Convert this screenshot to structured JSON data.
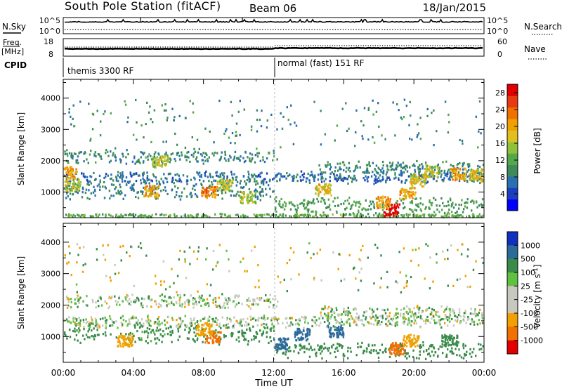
{
  "header": {
    "title": "South Pole Station (fitACF)",
    "beam": "Beam 06",
    "date": "18/Jan/2015"
  },
  "strip_labels": {
    "nsky": "N.Sky",
    "nsearch": "N.Search",
    "freq_line1": "Freq.",
    "freq_line2": "[MHz]",
    "nave": "Nave",
    "cpid": "CPID"
  },
  "strip_ticks": {
    "noise_left_top": "10^5",
    "noise_left_bottom": "10^0",
    "noise_right_top": "10^5",
    "noise_right_bottom": "10^0",
    "freq_top": "18",
    "freq_bottom": "8",
    "nave_top": "60",
    "nave_bottom": "0"
  },
  "cpid": {
    "modes": [
      {
        "label": "themis 3300 RF",
        "start_hour": 0
      },
      {
        "label": "normal (fast) 151 RF",
        "start_hour": 12
      }
    ]
  },
  "chart_data": [
    {
      "type": "heatmap",
      "panel": "power",
      "ylabel": "Slant Range [km]",
      "xlabel": "Time UT",
      "x_ticks": [
        "00:00",
        "04:00",
        "08:00",
        "12:00",
        "16:00",
        "20:00",
        "00:00"
      ],
      "xlim_hours": [
        0,
        24
      ],
      "y_ticks": [
        "1000",
        "2000",
        "3000",
        "4000"
      ],
      "ylim_km": [
        180,
        4600
      ],
      "colorbar": {
        "label": "Power [dB]",
        "ticks": [
          "4",
          "8",
          "12",
          "16",
          "20",
          "24",
          "28"
        ],
        "range": [
          0,
          30
        ],
        "colors": [
          "#0000ff",
          "#1c3fbf",
          "#2a6fb0",
          "#3e8a5a",
          "#55a84a",
          "#8fc23a",
          "#e0c020",
          "#f0a000",
          "#f07000",
          "#e83a10",
          "#e00000"
        ]
      },
      "bands": [
        {
          "from_hour": 0.0,
          "to_hour": 12.2,
          "center_km": 2150,
          "width_km": 420,
          "value": 9
        },
        {
          "from_hour": 14.5,
          "to_hour": 24.0,
          "center_km": 1800,
          "width_km": 380,
          "value": 9
        },
        {
          "from_hour": 0.0,
          "to_hour": 24.0,
          "center_km": 1500,
          "width_km": 350,
          "value": 7
        },
        {
          "from_hour": 0.0,
          "to_hour": 12.0,
          "center_km": 1100,
          "width_km": 600,
          "value": 8
        },
        {
          "from_hour": 12.0,
          "to_hour": 24.0,
          "center_km": 600,
          "width_km": 500,
          "value": 11
        },
        {
          "from_hour": 0.0,
          "to_hour": 24.0,
          "center_km": 260,
          "width_km": 150,
          "value": 12
        }
      ],
      "hotspots": [
        {
          "hour": 0.3,
          "km": 1650,
          "value": 20
        },
        {
          "hour": 0.5,
          "km": 1250,
          "value": 16
        },
        {
          "hour": 5.0,
          "km": 1050,
          "value": 20
        },
        {
          "hour": 5.5,
          "km": 2000,
          "value": 16
        },
        {
          "hour": 8.3,
          "km": 1000,
          "value": 22
        },
        {
          "hour": 9.2,
          "km": 1250,
          "value": 16
        },
        {
          "hour": 10.5,
          "km": 850,
          "value": 16
        },
        {
          "hour": 14.8,
          "km": 1100,
          "value": 18
        },
        {
          "hour": 18.7,
          "km": 450,
          "value": 30
        },
        {
          "hour": 18.2,
          "km": 700,
          "value": 20
        },
        {
          "hour": 19.6,
          "km": 1000,
          "value": 20
        },
        {
          "hour": 20.2,
          "km": 1400,
          "value": 18
        },
        {
          "hour": 21.0,
          "km": 1700,
          "value": 16
        },
        {
          "hour": 22.5,
          "km": 1600,
          "value": 20
        },
        {
          "hour": 23.6,
          "km": 1550,
          "value": 18
        }
      ]
    },
    {
      "type": "heatmap",
      "panel": "velocity",
      "ylabel": "Slant Range [km]",
      "xlabel": "Time UT",
      "x_ticks": [
        "00:00",
        "04:00",
        "08:00",
        "12:00",
        "16:00",
        "20:00",
        "00:00"
      ],
      "xlim_hours": [
        0,
        24
      ],
      "y_ticks": [
        "1000",
        "2000",
        "3000",
        "4000"
      ],
      "ylim_km": [
        180,
        4600
      ],
      "colorbar": {
        "label": "Velocity [m s^-1]",
        "ticks": [
          "1000",
          "500",
          "100",
          "25",
          "-25",
          "-100",
          "-500",
          "-1000"
        ],
        "colors": [
          "#1030c0",
          "#2c6a9a",
          "#3a8a4a",
          "#60c040",
          "#c8c8c0",
          "#c8c8c0",
          "#f0a000",
          "#f07000",
          "#e00000"
        ]
      },
      "bands": [
        {
          "from_hour": 0.0,
          "to_hour": 12.2,
          "center_km": 2150,
          "width_km": 420,
          "value": 0
        },
        {
          "from_hour": 14.5,
          "to_hour": 24.0,
          "center_km": 1800,
          "width_km": 380,
          "value": 0
        },
        {
          "from_hour": 0.0,
          "to_hour": 24.0,
          "center_km": 1500,
          "width_km": 350,
          "value": 0
        },
        {
          "from_hour": 0.0,
          "to_hour": 12.0,
          "center_km": 1100,
          "width_km": 600,
          "value": 200
        },
        {
          "from_hour": 12.0,
          "to_hour": 24.0,
          "center_km": 600,
          "width_km": 500,
          "value": 250
        }
      ],
      "hotspots": [
        {
          "hour": 3.5,
          "km": 900,
          "value": -200
        },
        {
          "hour": 8.5,
          "km": 1000,
          "value": -700
        },
        {
          "hour": 8.0,
          "km": 1250,
          "value": -300
        },
        {
          "hour": 12.4,
          "km": 800,
          "value": 700
        },
        {
          "hour": 13.6,
          "km": 1100,
          "value": 700
        },
        {
          "hour": 15.5,
          "km": 1200,
          "value": 900
        },
        {
          "hour": 19.0,
          "km": 650,
          "value": -700
        },
        {
          "hour": 19.8,
          "km": 900,
          "value": -400
        },
        {
          "hour": 22.0,
          "km": 900,
          "value": 250
        }
      ]
    }
  ]
}
